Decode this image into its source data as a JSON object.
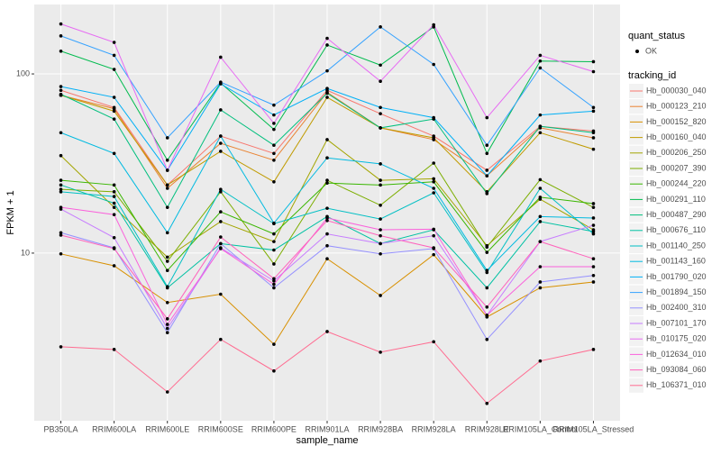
{
  "chart_data": {
    "type": "line",
    "x_label": "sample_name",
    "y_label": "FPKM + 1",
    "log_y": true,
    "grid": true,
    "legend_position": "right",
    "point_color": "#000000",
    "shape_legend": {
      "title": "quant_status",
      "labels": [
        "OK"
      ]
    },
    "legend_title": "tracking_id",
    "categories": [
      "PB350LA",
      "RRIM600LA",
      "RRIM600LE",
      "RRIM600SE",
      "RRIM600PE",
      "RRIM901LA",
      "RRIM928BA",
      "RRIM928LA",
      "RRIM928LE",
      "RRIM105LA_Control",
      "RRIM105LA_Stressed"
    ],
    "ylim": [
      1.16,
      244
    ],
    "yticks": [
      10,
      100
    ],
    "series": [
      {
        "name": "Hb_000030_040",
        "color": "#F8766D",
        "values": [
          81,
          65,
          24,
          45,
          36,
          81,
          60,
          45,
          29,
          51,
          48
        ]
      },
      {
        "name": "Hb_000123_210",
        "color": "#EA8331",
        "values": [
          76,
          64,
          23,
          41,
          33,
          79,
          50,
          43,
          27,
          50,
          44
        ]
      },
      {
        "name": "Hb_000152_820",
        "color": "#D89000",
        "values": [
          9.9,
          8.5,
          5.3,
          5.9,
          3.1,
          9.3,
          5.8,
          9.8,
          4.4,
          6.4,
          6.9
        ]
      },
      {
        "name": "Hb_000160_040",
        "color": "#C09B00",
        "values": [
          76,
          62,
          24,
          37,
          25,
          74,
          50,
          44,
          22,
          47,
          38
        ]
      },
      {
        "name": "Hb_000206_250",
        "color": "#A3A500",
        "values": [
          35,
          18,
          9.5,
          15,
          11.6,
          43,
          25.5,
          26,
          11,
          20,
          13.5
        ]
      },
      {
        "name": "Hb_000207_390",
        "color": "#7CAE00",
        "values": [
          22.7,
          22,
          9,
          22,
          8.7,
          25.5,
          18.5,
          31.8,
          10.8,
          25.7,
          18
        ]
      },
      {
        "name": "Hb_000244_220",
        "color": "#39B600",
        "values": [
          25.5,
          24,
          8,
          17,
          12.8,
          24.6,
          24,
          25,
          10.1,
          20.5,
          18.9
        ]
      },
      {
        "name": "Hb_000291_110",
        "color": "#00BB4E",
        "values": [
          134,
          106,
          33,
          89,
          49,
          145,
          112,
          183,
          36,
          118,
          117
        ]
      },
      {
        "name": "Hb_000487_290",
        "color": "#00BF7D",
        "values": [
          77,
          56,
          18,
          63,
          40,
          78,
          50,
          56,
          21.5,
          51,
          47
        ]
      },
      {
        "name": "Hb_000676_110",
        "color": "#00C1A3",
        "values": [
          24,
          19,
          6.4,
          11.3,
          10.4,
          16,
          11.3,
          13.5,
          6.4,
          15,
          13.2
        ]
      },
      {
        "name": "Hb_001140_250",
        "color": "#00BFC4",
        "values": [
          22,
          20.7,
          6.5,
          22.7,
          14.6,
          17.8,
          15.5,
          21.7,
          7.8,
          23,
          12.8
        ]
      },
      {
        "name": "Hb_001143_160",
        "color": "#00BAE0",
        "values": [
          47,
          36,
          13,
          45,
          14.7,
          34,
          31.5,
          23,
          8,
          16,
          15.7
        ]
      },
      {
        "name": "Hb_001790_020",
        "color": "#00B0F6",
        "values": [
          85,
          74,
          29,
          88,
          59,
          83,
          65,
          57,
          27,
          59,
          62
        ]
      },
      {
        "name": "Hb_001894_150",
        "color": "#35A2FF",
        "values": [
          163,
          127,
          44,
          90,
          67,
          104,
          183,
          113,
          40,
          108,
          65
        ]
      },
      {
        "name": "Hb_002400_310",
        "color": "#9590FF",
        "values": [
          13,
          10.7,
          3.6,
          11.3,
          6.4,
          11,
          9.9,
          10.6,
          3.3,
          6.9,
          7.5
        ]
      },
      {
        "name": "Hb_007101_170",
        "color": "#C77CFF",
        "values": [
          17.6,
          12.2,
          3.8,
          10.7,
          7,
          12.8,
          11.3,
          12.5,
          4.5,
          11.6,
          14.3
        ]
      },
      {
        "name": "Hb_010175_020",
        "color": "#E76BF3",
        "values": [
          190,
          150,
          29,
          124,
          53,
          158,
          91,
          188,
          57,
          127,
          103
        ]
      },
      {
        "name": "Hb_012634_010",
        "color": "#FA62DB",
        "values": [
          18,
          16.4,
          4,
          10.6,
          6.7,
          15.7,
          13.5,
          13.6,
          4.5,
          8.4,
          8.4
        ]
      },
      {
        "name": "Hb_093084_060",
        "color": "#FF62BC",
        "values": [
          12.6,
          10.6,
          4.3,
          12.3,
          7.2,
          15.2,
          12.5,
          10.7,
          5,
          11.6,
          9.3
        ]
      },
      {
        "name": "Hb_106371_010",
        "color": "#FF6C91",
        "values": [
          3,
          2.9,
          1.68,
          3.3,
          2.2,
          3.65,
          2.8,
          3.2,
          1.45,
          2.5,
          2.9
        ]
      }
    ]
  }
}
